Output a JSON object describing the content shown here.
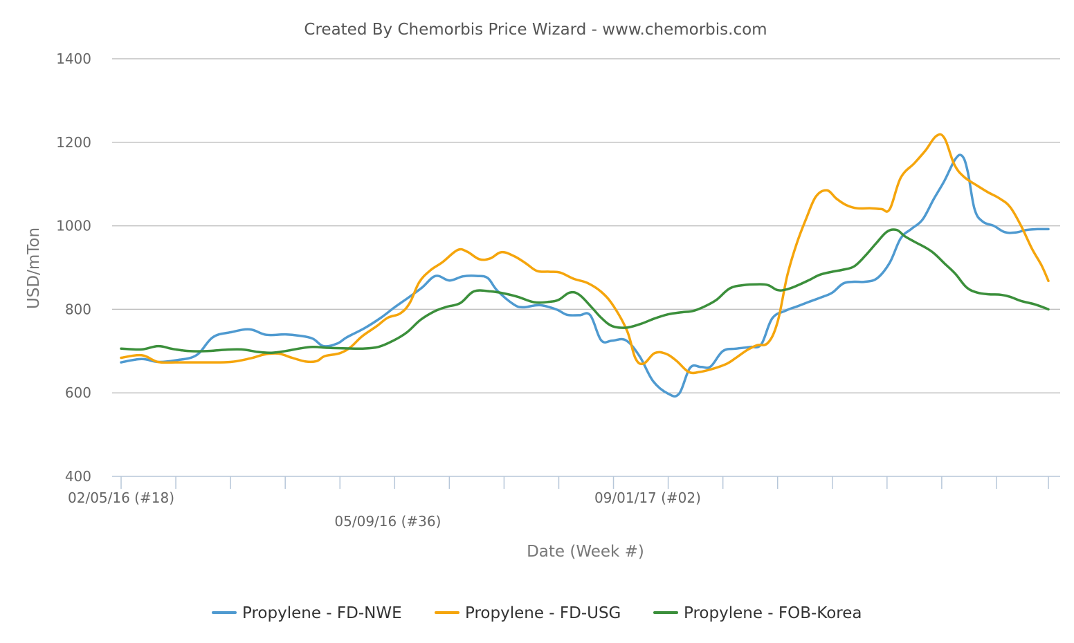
{
  "chart_data": {
    "type": "line",
    "title": "Created By Chemorbis Price Wizard - www.chemorbis.com",
    "xlabel": "Date (Week #)",
    "ylabel": "USD/mTon",
    "ylim": [
      400,
      1400
    ],
    "y_ticks": [
      "400",
      "600",
      "800",
      "1000",
      "1200",
      "1400"
    ],
    "grid": true,
    "legend_position": "bottom",
    "x_range": [
      0,
      68
    ],
    "x_label_ticks": [
      {
        "x": 0,
        "label": "02/05/16 (#18)",
        "row": 1
      },
      {
        "x": 19.5,
        "label": "05/09/16 (#36)",
        "row": 2
      },
      {
        "x": 38.5,
        "label": "09/01/17 (#02)",
        "row": 1
      }
    ],
    "x_ticks": [
      0,
      4,
      8,
      12,
      16,
      20,
      24,
      28,
      32,
      36,
      40,
      44,
      48,
      52,
      56,
      60,
      64,
      67.8
    ],
    "series": [
      {
        "name": "Propylene - FD-NWE",
        "color": "#4f9ad0",
        "points": [
          [
            0,
            673
          ],
          [
            1.5,
            681
          ],
          [
            2.7,
            674
          ],
          [
            4,
            678
          ],
          [
            5.5,
            690
          ],
          [
            6.7,
            733
          ],
          [
            8,
            745
          ],
          [
            9.4,
            752
          ],
          [
            10.6,
            739
          ],
          [
            12,
            740
          ],
          [
            13,
            737
          ],
          [
            14,
            730
          ],
          [
            14.8,
            712
          ],
          [
            15.8,
            718
          ],
          [
            16.5,
            733
          ],
          [
            17.8,
            755
          ],
          [
            19,
            780
          ],
          [
            20,
            805
          ],
          [
            21,
            828
          ],
          [
            22,
            852
          ],
          [
            23,
            880
          ],
          [
            24,
            869
          ],
          [
            25,
            879
          ],
          [
            26,
            880
          ],
          [
            26.8,
            875
          ],
          [
            27.5,
            845
          ],
          [
            28.7,
            812
          ],
          [
            29.4,
            805
          ],
          [
            30.6,
            810
          ],
          [
            31.8,
            800
          ],
          [
            32.6,
            787
          ],
          [
            33.5,
            786
          ],
          [
            34.3,
            786
          ],
          [
            35.1,
            726
          ],
          [
            35.9,
            725
          ],
          [
            36.9,
            726
          ],
          [
            37.9,
            688
          ],
          [
            38.9,
            628
          ],
          [
            40,
            598
          ],
          [
            40.8,
            598
          ],
          [
            41.6,
            660
          ],
          [
            42.4,
            662
          ],
          [
            43.1,
            663
          ],
          [
            44,
            700
          ],
          [
            45,
            706
          ],
          [
            46,
            710
          ],
          [
            46.8,
            716
          ],
          [
            47.6,
            778
          ],
          [
            48.6,
            797
          ],
          [
            49.5,
            808
          ],
          [
            50.3,
            818
          ],
          [
            51.3,
            830
          ],
          [
            52,
            840
          ],
          [
            52.8,
            862
          ],
          [
            53.6,
            866
          ],
          [
            54.4,
            866
          ],
          [
            55.3,
            875
          ],
          [
            56.2,
            912
          ],
          [
            57,
            970
          ],
          [
            57.8,
            993
          ],
          [
            58.6,
            1015
          ],
          [
            59.4,
            1063
          ],
          [
            60.2,
            1108
          ],
          [
            61,
            1160
          ],
          [
            61.5,
            1167
          ],
          [
            61.9,
            1130
          ],
          [
            62.4,
            1040
          ],
          [
            63,
            1010
          ],
          [
            63.8,
            1000
          ],
          [
            64.6,
            985
          ],
          [
            65.4,
            984
          ],
          [
            66.2,
            990
          ],
          [
            67,
            992
          ],
          [
            67.8,
            992
          ]
        ]
      },
      {
        "name": "Propylene - FD-USG",
        "color": "#f5a50c",
        "points": [
          [
            0,
            684
          ],
          [
            1.5,
            690
          ],
          [
            2.7,
            674
          ],
          [
            4,
            673
          ],
          [
            6,
            673
          ],
          [
            8,
            674
          ],
          [
            9.5,
            683
          ],
          [
            10.5,
            692
          ],
          [
            11.5,
            694
          ],
          [
            12.5,
            684
          ],
          [
            13.5,
            675
          ],
          [
            14.3,
            676
          ],
          [
            14.9,
            688
          ],
          [
            16,
            695
          ],
          [
            16.8,
            710
          ],
          [
            17.6,
            735
          ],
          [
            18.7,
            760
          ],
          [
            19.5,
            780
          ],
          [
            20.4,
            790
          ],
          [
            21.1,
            815
          ],
          [
            21.8,
            865
          ],
          [
            22.6,
            893
          ],
          [
            23.5,
            913
          ],
          [
            24.6,
            942
          ],
          [
            25.3,
            938
          ],
          [
            26.2,
            920
          ],
          [
            27,
            922
          ],
          [
            27.8,
            937
          ],
          [
            28.7,
            928
          ],
          [
            29.6,
            910
          ],
          [
            30.4,
            892
          ],
          [
            31.3,
            890
          ],
          [
            32.1,
            888
          ],
          [
            33.1,
            873
          ],
          [
            34.1,
            863
          ],
          [
            35.1,
            842
          ],
          [
            36,
            808
          ],
          [
            37,
            748
          ],
          [
            37.6,
            683
          ],
          [
            38.2,
            670
          ],
          [
            39,
            695
          ],
          [
            39.8,
            694
          ],
          [
            40.6,
            677
          ],
          [
            41.5,
            650
          ],
          [
            42.3,
            650
          ],
          [
            43.3,
            658
          ],
          [
            44.3,
            670
          ],
          [
            45,
            685
          ],
          [
            45.8,
            703
          ],
          [
            46.5,
            714
          ],
          [
            47.3,
            720
          ],
          [
            48,
            770
          ],
          [
            48.7,
            880
          ],
          [
            49.4,
            958
          ],
          [
            50.1,
            1018
          ],
          [
            50.8,
            1070
          ],
          [
            51.6,
            1085
          ],
          [
            52.3,
            1065
          ],
          [
            53,
            1050
          ],
          [
            53.8,
            1042
          ],
          [
            54.8,
            1042
          ],
          [
            55.6,
            1040
          ],
          [
            56.2,
            1040
          ],
          [
            57,
            1115
          ],
          [
            58,
            1150
          ],
          [
            58.8,
            1180
          ],
          [
            59.6,
            1215
          ],
          [
            60.2,
            1210
          ],
          [
            60.9,
            1148
          ],
          [
            61.6,
            1118
          ],
          [
            62.6,
            1096
          ],
          [
            63.4,
            1080
          ],
          [
            64.2,
            1066
          ],
          [
            65,
            1045
          ],
          [
            65.8,
            1000
          ],
          [
            66.6,
            945
          ],
          [
            67.3,
            905
          ],
          [
            67.8,
            868
          ]
        ]
      },
      {
        "name": "Propylene - FOB-Korea",
        "color": "#3b8f3b",
        "points": [
          [
            0,
            706
          ],
          [
            1.5,
            704
          ],
          [
            2.7,
            712
          ],
          [
            3.8,
            705
          ],
          [
            5,
            700
          ],
          [
            6.3,
            700
          ],
          [
            7.5,
            703
          ],
          [
            8.8,
            704
          ],
          [
            10,
            698
          ],
          [
            11,
            696
          ],
          [
            12,
            700
          ],
          [
            13,
            706
          ],
          [
            14,
            710
          ],
          [
            15,
            708
          ],
          [
            16,
            707
          ],
          [
            17.6,
            706
          ],
          [
            18.8,
            710
          ],
          [
            19.9,
            725
          ],
          [
            20.9,
            745
          ],
          [
            21.9,
            775
          ],
          [
            22.9,
            795
          ],
          [
            23.8,
            806
          ],
          [
            24.8,
            815
          ],
          [
            25.8,
            843
          ],
          [
            27,
            843
          ],
          [
            28,
            838
          ],
          [
            29,
            830
          ],
          [
            30.2,
            817
          ],
          [
            31.3,
            818
          ],
          [
            32,
            823
          ],
          [
            32.8,
            840
          ],
          [
            33.5,
            835
          ],
          [
            34.4,
            805
          ],
          [
            35.1,
            780
          ],
          [
            35.9,
            760
          ],
          [
            36.9,
            756
          ],
          [
            37.9,
            764
          ],
          [
            39,
            778
          ],
          [
            40,
            788
          ],
          [
            41,
            793
          ],
          [
            41.8,
            796
          ],
          [
            42.6,
            806
          ],
          [
            43.5,
            822
          ],
          [
            44.5,
            850
          ],
          [
            45.5,
            858
          ],
          [
            46.5,
            860
          ],
          [
            47.3,
            858
          ],
          [
            48,
            846
          ],
          [
            48.7,
            848
          ],
          [
            49.5,
            858
          ],
          [
            50.3,
            870
          ],
          [
            51.1,
            883
          ],
          [
            52,
            890
          ],
          [
            52.8,
            895
          ],
          [
            53.6,
            903
          ],
          [
            54.4,
            928
          ],
          [
            55.2,
            958
          ],
          [
            56,
            986
          ],
          [
            56.7,
            990
          ],
          [
            57.3,
            975
          ],
          [
            58,
            962
          ],
          [
            58.7,
            950
          ],
          [
            59.4,
            935
          ],
          [
            60.2,
            910
          ],
          [
            61,
            885
          ],
          [
            61.8,
            853
          ],
          [
            62.6,
            840
          ],
          [
            63.5,
            836
          ],
          [
            64.3,
            835
          ],
          [
            65,
            830
          ],
          [
            65.8,
            820
          ],
          [
            66.8,
            812
          ],
          [
            67.8,
            800
          ]
        ]
      }
    ]
  }
}
